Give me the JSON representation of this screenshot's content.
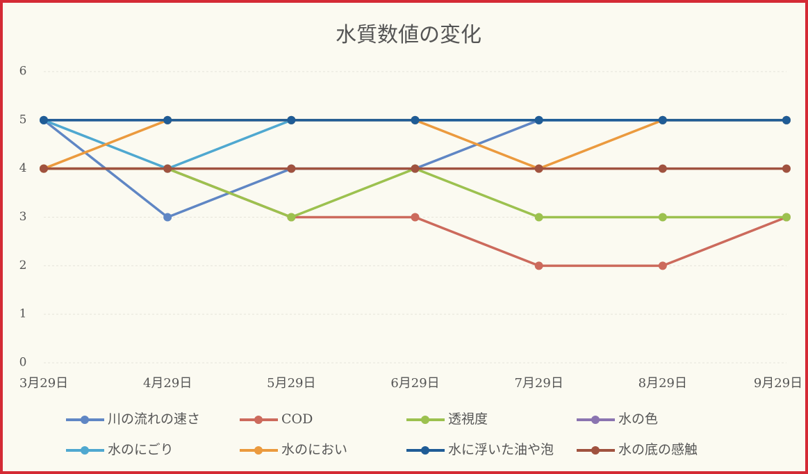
{
  "chart_data": {
    "type": "line",
    "title": "水質数値の変化",
    "categories": [
      "3月29日",
      "4月29日",
      "5月29日",
      "6月29日",
      "7月29日",
      "8月29日",
      "9月29日"
    ],
    "ylim": [
      0,
      6
    ],
    "yticks": [
      0,
      1,
      2,
      3,
      4,
      5,
      6
    ],
    "grid": true,
    "legend": "bottom",
    "series": [
      {
        "name": "川の流れの速さ",
        "color": "#5f86c4",
        "values": [
          5,
          3,
          4,
          4,
          5,
          5,
          5
        ]
      },
      {
        "name": "COD",
        "color": "#cc6a5c",
        "values": [
          4,
          4,
          3,
          3,
          2,
          2,
          3
        ]
      },
      {
        "name": "透視度",
        "color": "#9cc14f",
        "values": [
          4,
          4,
          3,
          4,
          3,
          3,
          3
        ]
      },
      {
        "name": "水の色",
        "color": "#8a74b0",
        "values": [
          5,
          5,
          5,
          5,
          5,
          5,
          5
        ]
      },
      {
        "name": "水のにごり",
        "color": "#4fa8d0",
        "values": [
          5,
          4,
          5,
          5,
          5,
          5,
          5
        ]
      },
      {
        "name": "水のにおい",
        "color": "#eb9a3e",
        "values": [
          4,
          5,
          5,
          5,
          4,
          5,
          5
        ]
      },
      {
        "name": "水に浮いた油や泡",
        "color": "#1f5c96",
        "values": [
          5,
          5,
          5,
          5,
          5,
          5,
          5
        ]
      },
      {
        "name": "水の底の感触",
        "color": "#a0523f",
        "values": [
          4,
          4,
          4,
          4,
          4,
          4,
          4
        ]
      }
    ]
  }
}
